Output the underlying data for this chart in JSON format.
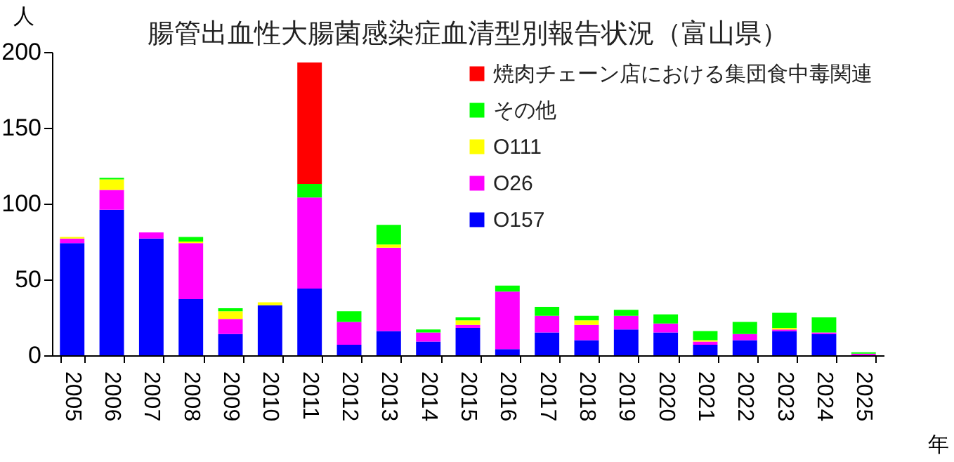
{
  "chart_data": {
    "type": "bar",
    "title": "腸管出血性大腸菌感染症血清型別報告状況（富山県）",
    "ylabel": "人",
    "xlabel": "年",
    "stacked": true,
    "legend": "top right",
    "grid": false,
    "categories": [
      "2005",
      "2006",
      "2007",
      "2008",
      "2009",
      "2010",
      "2011",
      "2012",
      "2013",
      "2014",
      "2015",
      "2016",
      "2017",
      "2018",
      "2019",
      "2020",
      "2021",
      "2022",
      "2023",
      "2024",
      "2025"
    ],
    "ylim": [
      0,
      200
    ],
    "yticks": [
      0,
      50,
      100,
      150,
      200
    ],
    "series": [
      {
        "name": "O157",
        "color": "#0000ff",
        "values": [
          74,
          96,
          77,
          37,
          14,
          33,
          44,
          7,
          16,
          9,
          18,
          4,
          15,
          10,
          17,
          15,
          7,
          10,
          16,
          14,
          0
        ]
      },
      {
        "name": "O26",
        "color": "#ff00ff",
        "values": [
          3,
          13,
          4,
          37,
          10,
          0,
          60,
          15,
          55,
          6,
          2,
          38,
          11,
          10,
          9,
          6,
          2,
          4,
          1,
          1,
          1
        ]
      },
      {
        "name": "O111",
        "color": "#ffff00",
        "values": [
          1,
          7,
          0,
          1,
          5,
          2,
          0,
          0,
          2,
          0,
          3,
          0,
          0,
          3,
          0,
          0,
          1,
          0,
          1,
          0,
          0
        ]
      },
      {
        "name": "その他",
        "color": "#00ff00",
        "values": [
          0,
          1,
          0,
          3,
          2,
          0,
          9,
          7,
          13,
          2,
          2,
          4,
          6,
          3,
          4,
          6,
          6,
          8,
          10,
          10,
          1
        ]
      },
      {
        "name": "焼肉チェーン店における集団食中毒関連",
        "color": "#ff0000",
        "values": [
          null,
          null,
          null,
          null,
          null,
          null,
          80,
          null,
          null,
          null,
          null,
          null,
          null,
          null,
          null,
          null,
          null,
          null,
          null,
          null,
          null
        ]
      }
    ]
  }
}
